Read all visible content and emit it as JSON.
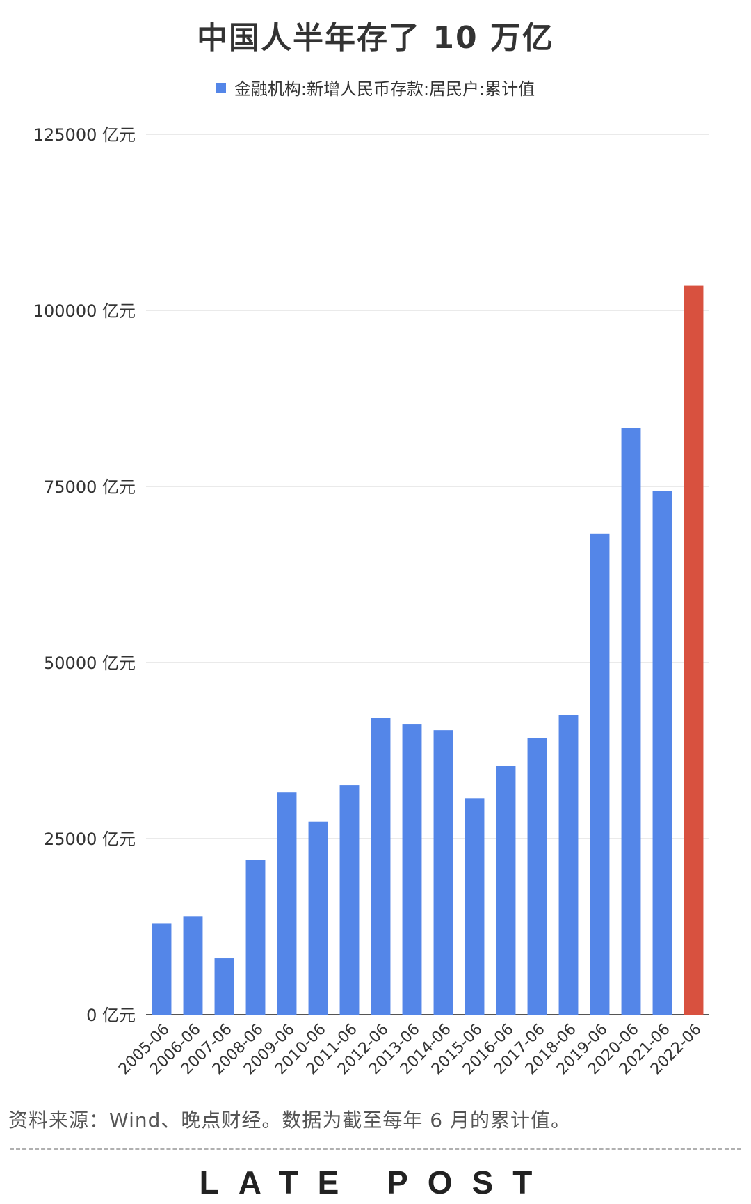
{
  "colors": {
    "bar_blue": "#5486E8",
    "bar_red": "#D8513F",
    "grid": "#e3e3e3",
    "axis": "#555555",
    "brand_accent": "#E0393E"
  },
  "chart_data": {
    "type": "bar",
    "title": "中国人半年存了 10 万亿",
    "legend": [
      "金融机构:新增人民币存款:居民户:累计值"
    ],
    "legend_position": "top",
    "ylim": [
      0,
      125000
    ],
    "y_ticks": [
      0,
      25000,
      50000,
      75000,
      100000,
      125000
    ],
    "y_tick_labels": [
      "0 亿元",
      "25000 亿元",
      "50000 亿元",
      "75000 亿元",
      "100000 亿元",
      "125000 亿元"
    ],
    "grid": true,
    "categories": [
      "2005-06",
      "2006-06",
      "2007-06",
      "2008-06",
      "2009-06",
      "2010-06",
      "2011-06",
      "2012-06",
      "2013-06",
      "2014-06",
      "2015-06",
      "2016-06",
      "2017-06",
      "2018-06",
      "2019-06",
      "2020-06",
      "2021-06",
      "2022-06"
    ],
    "series": [
      {
        "name": "金融机构:新增人民币存款:居民户:累计值",
        "values": [
          13000,
          14000,
          8000,
          22000,
          31600,
          27400,
          32600,
          42100,
          41200,
          40400,
          30700,
          35300,
          39300,
          42500,
          68300,
          83300,
          74400,
          103500
        ]
      }
    ],
    "highlight_index": 17
  },
  "source_note": "资料来源：Wind、晚点财经。数据为截至每年 6 月的累计值。",
  "brand": {
    "text": "LATE POST"
  }
}
